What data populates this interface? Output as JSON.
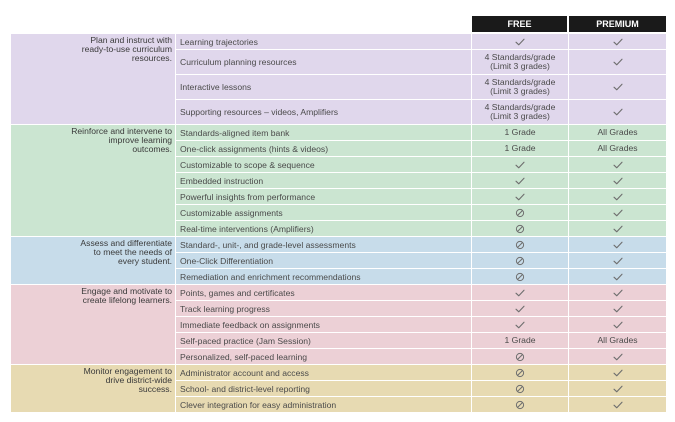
{
  "header": {
    "free": "FREE",
    "premium": "PREMIUM"
  },
  "groups": [
    {
      "label": "Plan and instruct with ready-to-use curriculum resources.",
      "theme": "purple",
      "rows": [
        {
          "feature": "Learning trajectories",
          "free": "check",
          "premium": "check"
        },
        {
          "feature": "Curriculum planning resources",
          "free": "4 Standards/grade (Limit 3 grades)",
          "premium": "check"
        },
        {
          "feature": "Interactive lessons",
          "free": "4 Standards/grade (Limit 3 grades)",
          "premium": "check"
        },
        {
          "feature": "Supporting resources – videos, Amplifiers",
          "free": "4 Standards/grade (Limit 3 grades)",
          "premium": "check"
        }
      ]
    },
    {
      "label": "Reinforce and intervene to improve learning outcomes.",
      "theme": "green",
      "rows": [
        {
          "feature": "Standards-aligned item bank",
          "free": "1 Grade",
          "premium": "All Grades"
        },
        {
          "feature": "One-click assignments (hints & videos)",
          "free": "1 Grade",
          "premium": "All Grades"
        },
        {
          "feature": "Customizable to scope & sequence",
          "free": "check",
          "premium": "check"
        },
        {
          "feature": "Embedded instruction",
          "free": "check",
          "premium": "check"
        },
        {
          "feature": "Powerful insights from performance",
          "free": "check",
          "premium": "check"
        },
        {
          "feature": "Customizable assignments",
          "free": "none",
          "premium": "check"
        },
        {
          "feature": "Real-time interventions (Amplifiers)",
          "free": "none",
          "premium": "check"
        }
      ]
    },
    {
      "label": "Assess and differentiate to meet the needs of every student.",
      "theme": "blue",
      "rows": [
        {
          "feature": "Standard-, unit-, and grade-level assessments",
          "free": "none",
          "premium": "check"
        },
        {
          "feature": "One-Click Differentiation",
          "free": "none",
          "premium": "check"
        },
        {
          "feature": "Remediation and enrichment recommendations",
          "free": "none",
          "premium": "check"
        }
      ]
    },
    {
      "label": "Engage and motivate to create lifelong learners.",
      "theme": "pink",
      "rows": [
        {
          "feature": "Points, games and certificates",
          "free": "check",
          "premium": "check"
        },
        {
          "feature": "Track learning progress",
          "free": "check",
          "premium": "check"
        },
        {
          "feature": "Immediate feedback on assignments",
          "free": "check",
          "premium": "check"
        },
        {
          "feature": "Self-paced practice (Jam Session)",
          "free": "1 Grade",
          "premium": "All Grades"
        },
        {
          "feature": "Personalized, self-paced learning",
          "free": "none",
          "premium": "check"
        }
      ]
    },
    {
      "label": "Monitor engagement to drive district-wide success.",
      "theme": "tan",
      "rows": [
        {
          "feature": "Administrator account and access",
          "free": "none",
          "premium": "check"
        },
        {
          "feature": "School- and district-level reporting",
          "free": "none",
          "premium": "check"
        },
        {
          "feature": "Clever integration for easy administration",
          "free": "none",
          "premium": "check"
        }
      ]
    }
  ]
}
